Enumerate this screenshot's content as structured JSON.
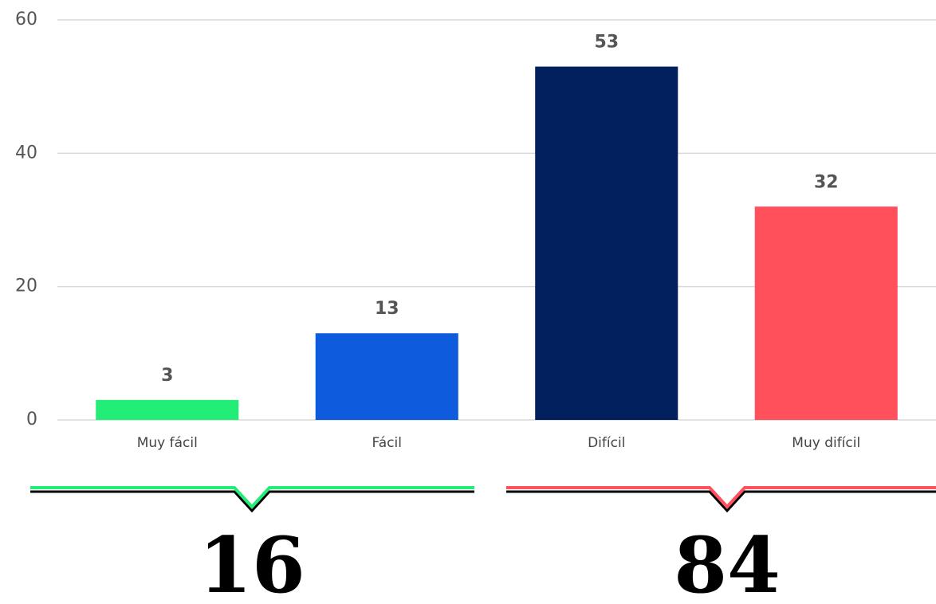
{
  "chart_data": {
    "type": "bar",
    "categories": [
      "Muy fácil",
      "Fácil",
      "Difícil",
      "Muy difícil"
    ],
    "values": [
      3,
      13,
      53,
      32
    ],
    "colors": [
      "#22ee77",
      "#0e5bdd",
      "#03205e",
      "#ff505c"
    ],
    "ylim": [
      0,
      60
    ],
    "yticks": [
      0,
      20,
      40,
      60
    ],
    "grid": true,
    "groups": [
      {
        "label": "16",
        "color": "#22ee77"
      },
      {
        "label": "84",
        "color": "#ff505c"
      }
    ]
  }
}
